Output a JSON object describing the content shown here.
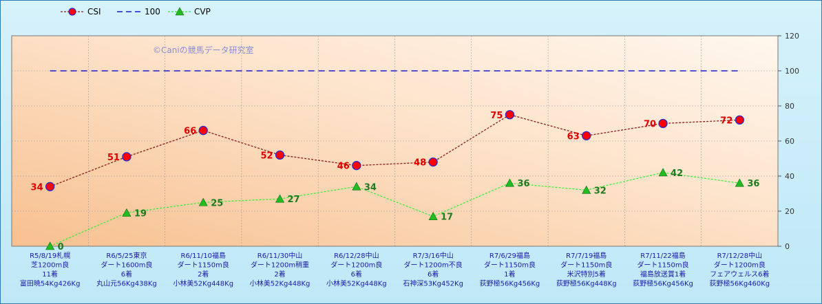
{
  "chart_data": {
    "type": "line",
    "watermark": "©Caniの競馬データ研究室",
    "ylim": [
      0,
      120
    ],
    "yticks": [
      0,
      20,
      40,
      60,
      80,
      100,
      120
    ],
    "grid": true,
    "legend_position": "top-left",
    "categories": [
      [
        "R5/8/19札幌",
        "芝1200m良",
        "11着",
        "富田暁54Kg426Kg"
      ],
      [
        "R6/5/25東京",
        "ダート1600m良",
        "6着",
        "丸山元56Kg438Kg"
      ],
      [
        "R6/11/10福島",
        "ダート1150m良",
        "2着",
        "小林美52Kg448Kg"
      ],
      [
        "R6/11/30中山",
        "ダート1200m稍重",
        "2着",
        "小林美52Kg448Kg"
      ],
      [
        "R6/12/28中山",
        "ダート1200m良",
        "6着",
        "小林美52Kg448Kg"
      ],
      [
        "R7/3/16中山",
        "ダート1200m不良",
        "6着",
        "石神深53Kg452Kg"
      ],
      [
        "R7/6/29福島",
        "ダート1150m良",
        "1着",
        "荻野極56Kg456Kg"
      ],
      [
        "R7/7/19福島",
        "ダート1150m良",
        "米沢特別5着",
        "荻野極56Kg448Kg"
      ],
      [
        "R7/11/22福島",
        "ダート1150m良",
        "福島放送賞1着",
        "荻野極56Kg456Kg"
      ],
      [
        "R7/12/28中山",
        "ダート1200m良",
        "フェアウェルス6着",
        "荻野極56Kg460Kg"
      ]
    ],
    "series": [
      {
        "name": "CSI",
        "values": [
          34,
          51,
          66,
          52,
          46,
          48,
          75,
          63,
          70,
          72
        ],
        "color": "#8b1a1a",
        "marker_color": "#ff0000"
      },
      {
        "name": "100",
        "values": [
          100,
          100,
          100,
          100,
          100,
          100,
          100,
          100,
          100,
          100
        ],
        "color": "#1a1acc"
      },
      {
        "name": "CVP",
        "values": [
          0,
          19,
          25,
          27,
          34,
          17,
          36,
          32,
          42,
          36
        ],
        "color": "#33ee33",
        "marker_color": "#22bb22"
      }
    ]
  }
}
